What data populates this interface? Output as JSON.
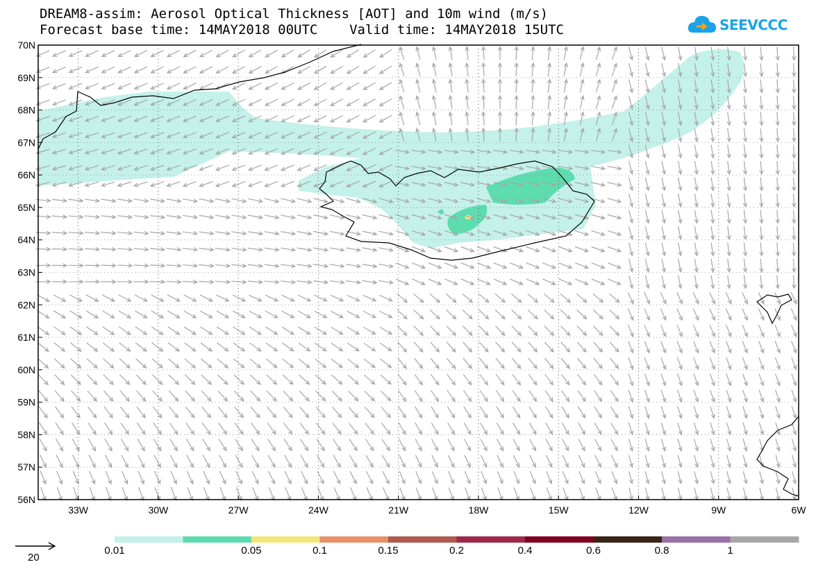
{
  "title": {
    "line1": "DREAM8-assim: Aerosol Optical Thickness [AOT] and 10m wind (m/s)",
    "line2": "Forecast base time: 14MAY2018 00UTC    Valid time: 14MAY2018 15UTC"
  },
  "logo": {
    "text": "SEEVCCC",
    "icon": "cloud-icon",
    "color": "#1aa3e8"
  },
  "map": {
    "lat_range": [
      56,
      70
    ],
    "lon_range": [
      -34.5,
      -6
    ],
    "lat_labels": [
      "70N",
      "69N",
      "68N",
      "67N",
      "66N",
      "65N",
      "64N",
      "63N",
      "62N",
      "61N",
      "60N",
      "59N",
      "58N",
      "57N",
      "56N"
    ],
    "lon_labels": [
      "33W",
      "30W",
      "27W",
      "24W",
      "21W",
      "18W",
      "15W",
      "12W",
      "9W",
      "6W"
    ],
    "wind_arrow_color": "#a6a6a6",
    "coastline_color": "#000000"
  },
  "legend": {
    "reference_vector": "20",
    "labels": [
      "0.01",
      "0.05",
      "0.1",
      "0.15",
      "0.2",
      "0.4",
      "0.6",
      "0.8",
      "1"
    ],
    "colors": [
      "#c4f1ea",
      "#5ddcb0",
      "#f4e67a",
      "#e8906a",
      "#b05a50",
      "#a02848",
      "#800020",
      "#3a2418",
      "#9a70a8",
      "#a8a8a8"
    ]
  }
}
